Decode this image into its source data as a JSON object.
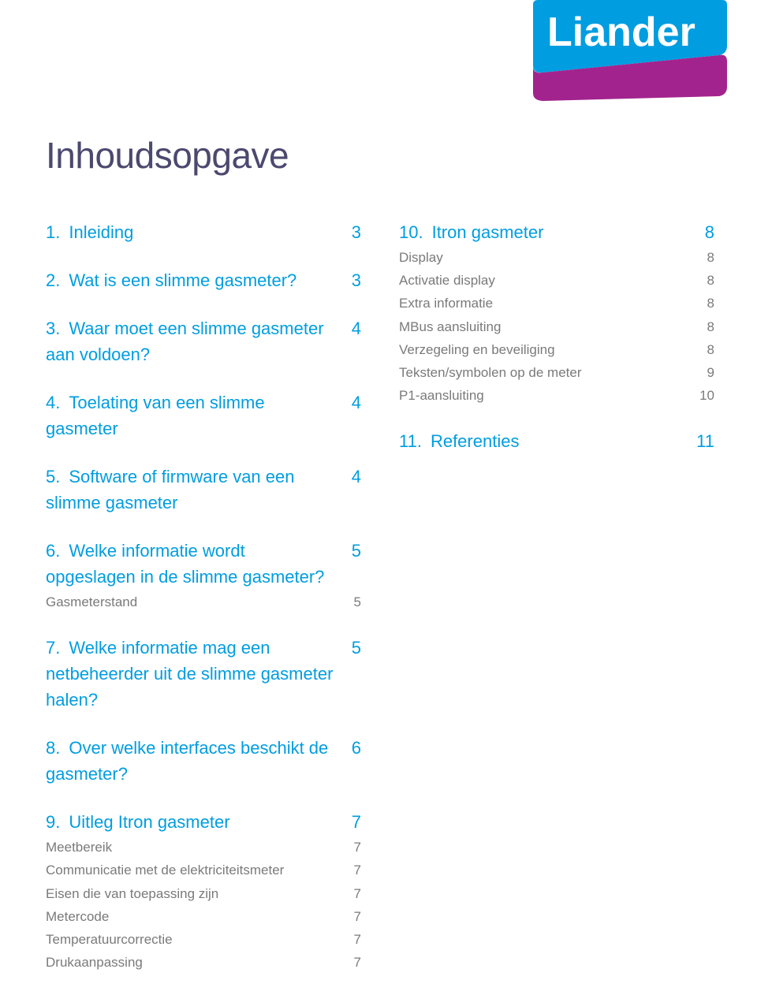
{
  "colors": {
    "title": "#4c486f",
    "level1": "#009de0",
    "level2": "#7a7a7a",
    "logo_top": "#009de0",
    "logo_bottom": "#a3238e",
    "logo_text": "#ffffff",
    "background": "#ffffff"
  },
  "title": "Inhoudsopgave",
  "left": [
    {
      "num": "1.",
      "label": "Inleiding",
      "page": "3",
      "subs": []
    },
    {
      "num": "2.",
      "label": "Wat is een slimme gasmeter?",
      "page": "3",
      "subs": []
    },
    {
      "num": "3.",
      "label": "Waar moet een slimme gasmeter aan voldoen?",
      "page": "4",
      "subs": []
    },
    {
      "num": "4.",
      "label": "Toelating van een slimme gasmeter",
      "page": "4",
      "subs": []
    },
    {
      "num": "5.",
      "label": "Software of firmware van een slimme gasmeter",
      "page": "4",
      "subs": []
    },
    {
      "num": "6.",
      "label": "Welke informatie wordt opgeslagen in de slimme gasmeter?",
      "page": "5",
      "subs": [
        {
          "label": "Gasmeterstand",
          "page": "5"
        }
      ]
    },
    {
      "num": "7.",
      "label": "Welke informatie mag een netbeheerder uit de slimme gasmeter halen?",
      "page": "5",
      "subs": []
    },
    {
      "num": "8.",
      "label": "Over welke interfaces beschikt de gasmeter?",
      "page": "6",
      "subs": []
    },
    {
      "num": "9.",
      "label": "Uitleg Itron gasmeter",
      "page": "7",
      "subs": [
        {
          "label": "Meetbereik",
          "page": "7"
        },
        {
          "label": "Communicatie met de elektriciteitsmeter",
          "page": "7"
        },
        {
          "label": "Eisen die van toepassing zijn",
          "page": "7"
        },
        {
          "label": "Metercode",
          "page": "7"
        },
        {
          "label": "Temperatuurcorrectie",
          "page": "7"
        },
        {
          "label": "Drukaanpassing",
          "page": "7"
        }
      ]
    }
  ],
  "right": [
    {
      "num": "10.",
      "label": "Itron gasmeter",
      "page": "8",
      "subs": [
        {
          "label": "Display",
          "page": "8"
        },
        {
          "label": "Activatie display",
          "page": "8"
        },
        {
          "label": "Extra informatie",
          "page": "8"
        },
        {
          "label": "MBus aansluiting",
          "page": "8"
        },
        {
          "label": "Verzegeling en beveiliging",
          "page": "8"
        },
        {
          "label": "Teksten/symbolen op de meter",
          "page": "9"
        },
        {
          "label": "P1-aansluiting",
          "page": "10"
        }
      ]
    },
    {
      "num": "11.",
      "label": "Referenties",
      "page": "11",
      "subs": []
    }
  ],
  "logo_text": "Liander"
}
